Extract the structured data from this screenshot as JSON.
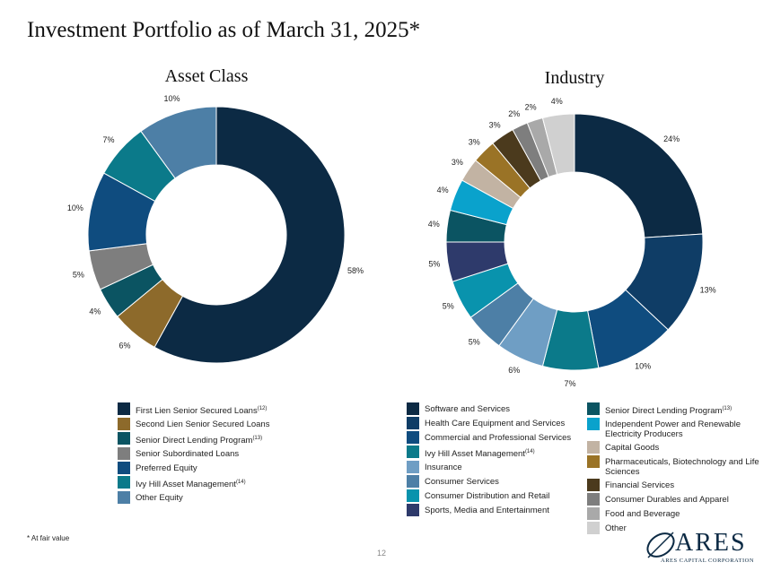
{
  "page": {
    "title": "Investment Portfolio as of March 31, 2025*",
    "footnote": "* At fair value",
    "page_number": "12",
    "logo": {
      "word": "ARES",
      "sub": "ARES CAPITAL CORPORATION"
    }
  },
  "chart_data": [
    {
      "type": "pie",
      "title": "Asset Class",
      "donut": true,
      "categories": [
        "First Lien Senior Secured Loans",
        "Second Lien Senior Secured Loans",
        "Senior Direct Lending Program",
        "Senior Subordinated Loans",
        "Preferred Equity",
        "Ivy Hill Asset Management",
        "Other Equity"
      ],
      "superscripts": [
        "(12)",
        "",
        "(13)",
        "",
        "",
        "(14)",
        ""
      ],
      "values": [
        58,
        6,
        4,
        5,
        10,
        7,
        10
      ],
      "labels": [
        "58%",
        "6%",
        "4%",
        "5%",
        "10%",
        "7%",
        "10%"
      ],
      "colors": [
        "#0c2a44",
        "#8d6a2b",
        "#0b5462",
        "#7e7e7e",
        "#0f4c7f",
        "#0b7a8a",
        "#4d7fa6"
      ],
      "legend_position": "bottom"
    },
    {
      "type": "pie",
      "title": "Industry",
      "donut": true,
      "categories": [
        "Software and Services",
        "Health Care Equipment and Services",
        "Commercial and Professional Services",
        "Ivy Hill Asset Management",
        "Insurance",
        "Consumer Services",
        "Consumer Distribution and Retail",
        "Sports, Media and Entertainment",
        "Senior Direct Lending Program",
        "Independent Power and Renewable Electricity Producers",
        "Capital Goods",
        "Pharmaceuticals, Biotechnology and Life Sciences",
        "Financial Services",
        "Consumer Durables and Apparel",
        "Food and Beverage",
        "Other"
      ],
      "superscripts": [
        "",
        "",
        "",
        "(14)",
        "",
        "",
        "",
        "",
        "(13)",
        "",
        "",
        "",
        "",
        "",
        "",
        ""
      ],
      "values": [
        24,
        13,
        10,
        7,
        6,
        5,
        5,
        5,
        4,
        4,
        3,
        3,
        3,
        2,
        2,
        4
      ],
      "labels": [
        "24%",
        "13%",
        "10%",
        "7%",
        "6%",
        "5%",
        "5%",
        "5%",
        "4%",
        "4%",
        "3%",
        "3%",
        "3%",
        "2%",
        "2%",
        "4%"
      ],
      "colors": [
        "#0c2a44",
        "#0f3d66",
        "#0f4c7f",
        "#0b7a8a",
        "#6f9ec4",
        "#4d7fa6",
        "#0993ad",
        "#2e3a6b",
        "#0b5462",
        "#0aa2cc",
        "#c2b3a3",
        "#9a7326",
        "#4b3a1d",
        "#7e7e7e",
        "#a9a9a9",
        "#d0d0d0"
      ],
      "legend_position": "bottom"
    }
  ]
}
